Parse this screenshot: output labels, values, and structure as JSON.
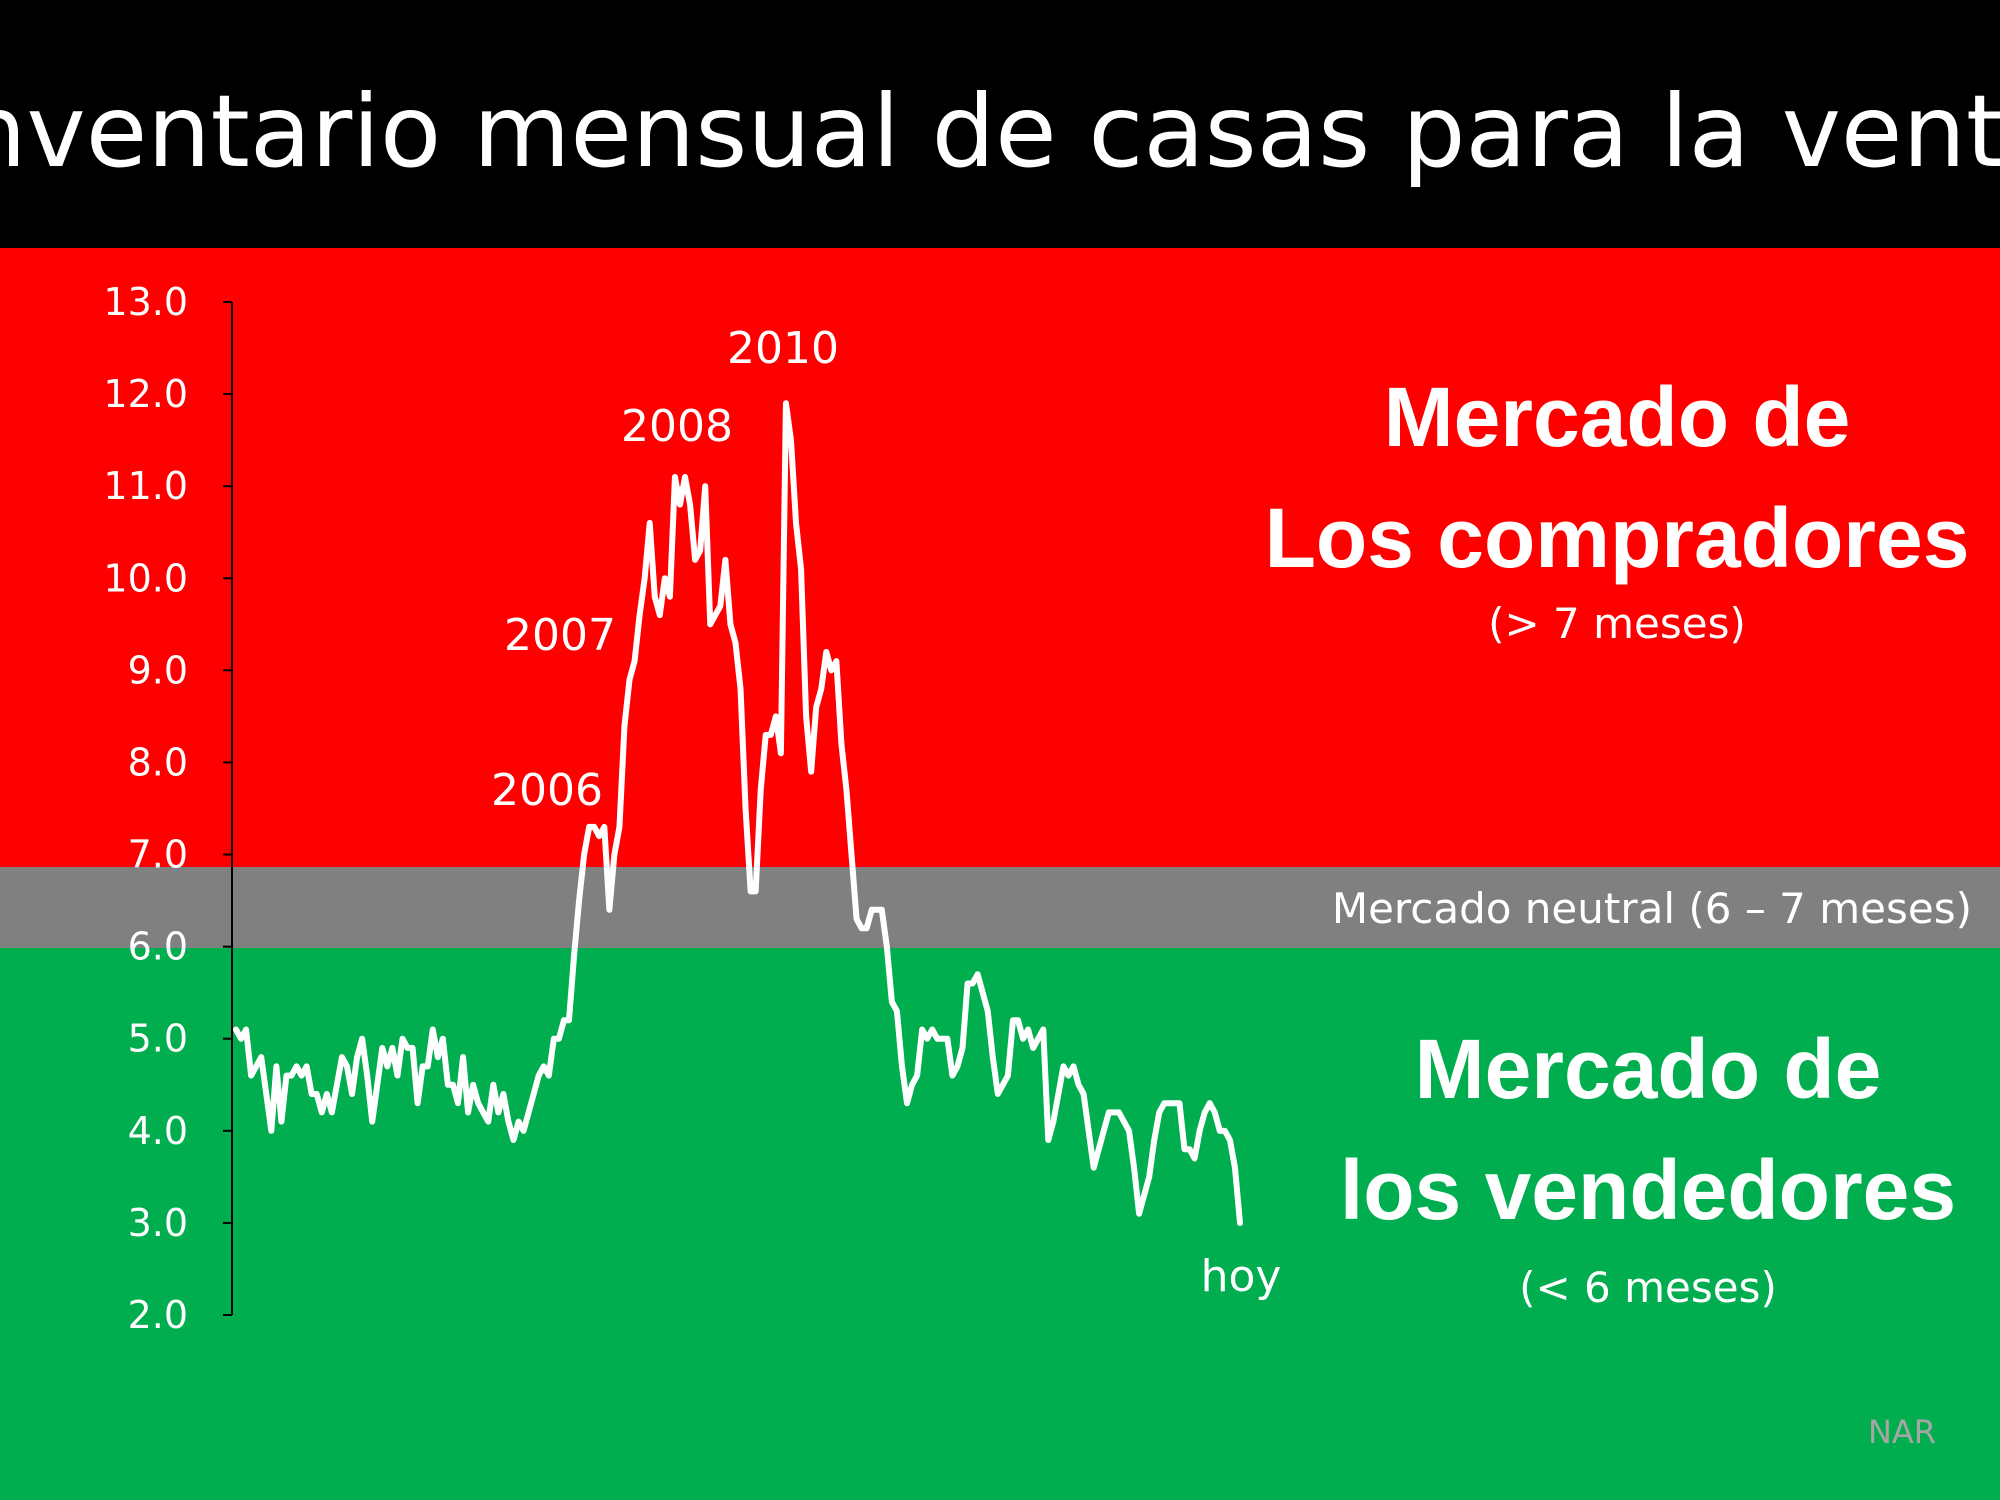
{
  "title": "Inventario mensual de casas para la venta",
  "colors": {
    "header": "#000000",
    "buyers": "#ff0000",
    "neutral": "#808080",
    "sellers": "#00ad4f",
    "line": "#ffffff",
    "source": "#a6a6a6"
  },
  "zones": {
    "buyers": {
      "line1": "Mercado de",
      "line2": "Los compradores",
      "note": "(> 7 meses)"
    },
    "neutral": {
      "label": "Mercado neutral (6 – 7 meses)"
    },
    "sellers": {
      "line1": "Mercado de",
      "line2": "los vendedores",
      "note": "(< 6 meses)"
    }
  },
  "source": "NAR",
  "chart_data": {
    "type": "line",
    "title": "Inventario mensual de casas para la venta",
    "ylim": [
      2.0,
      13.0
    ],
    "yticks": [
      "2.0",
      "3.0",
      "4.0",
      "5.0",
      "6.0",
      "7.0",
      "8.0",
      "9.0",
      "10.0",
      "11.0",
      "12.0",
      "13.0"
    ],
    "zone_thresholds": {
      "neutral_low": 6.0,
      "neutral_high": 7.0
    },
    "annotations": [
      {
        "text": "2006",
        "index": 70
      },
      {
        "text": "2007",
        "index": 79
      },
      {
        "text": "2008",
        "index": 87
      },
      {
        "text": "2010",
        "index": 108
      },
      {
        "text": "hoy",
        "index": 196
      }
    ],
    "values": [
      5.1,
      5.0,
      5.1,
      4.6,
      4.7,
      4.8,
      4.4,
      4.0,
      4.7,
      4.1,
      4.6,
      4.6,
      4.7,
      4.6,
      4.7,
      4.4,
      4.4,
      4.2,
      4.4,
      4.2,
      4.5,
      4.8,
      4.7,
      4.4,
      4.8,
      5.0,
      4.6,
      4.1,
      4.5,
      4.9,
      4.7,
      4.9,
      4.6,
      5.0,
      4.9,
      4.9,
      4.3,
      4.7,
      4.7,
      5.1,
      4.8,
      5.0,
      4.5,
      4.5,
      4.3,
      4.8,
      4.2,
      4.5,
      4.3,
      4.2,
      4.1,
      4.5,
      4.2,
      4.4,
      4.1,
      3.9,
      4.1,
      4.0,
      4.2,
      4.4,
      4.6,
      4.7,
      4.6,
      5.0,
      5.0,
      5.2,
      5.2,
      5.9,
      6.5,
      7.0,
      7.3,
      7.3,
      7.2,
      7.3,
      6.4,
      7.0,
      7.3,
      8.4,
      8.9,
      9.1,
      9.6,
      10.0,
      10.6,
      9.8,
      9.6,
      10.0,
      9.8,
      11.1,
      10.8,
      11.1,
      10.8,
      10.2,
      10.3,
      11.0,
      9.5,
      9.6,
      9.7,
      10.2,
      9.5,
      9.3,
      8.8,
      7.5,
      6.6,
      6.6,
      7.7,
      8.3,
      8.3,
      8.5,
      8.1,
      11.9,
      11.5,
      10.6,
      10.1,
      8.5,
      7.9,
      8.6,
      8.8,
      9.2,
      9.0,
      9.1,
      8.2,
      7.7,
      7.0,
      6.3,
      6.2,
      6.2,
      6.4,
      6.4,
      6.4,
      6.0,
      5.4,
      5.3,
      4.7,
      4.3,
      4.5,
      4.6,
      5.1,
      5.0,
      5.1,
      5.0,
      5.0,
      5.0,
      4.6,
      4.7,
      4.9,
      5.6,
      5.6,
      5.7,
      5.5,
      5.3,
      4.8,
      4.4,
      4.5,
      4.6,
      5.2,
      5.2,
      5.0,
      5.1,
      4.9,
      5.0,
      5.1,
      3.9,
      4.1,
      4.4,
      4.7,
      4.6,
      4.7,
      4.5,
      4.4,
      4.0,
      3.6,
      3.8,
      4.0,
      4.2,
      4.2,
      4.2,
      4.1,
      4.0,
      3.6,
      3.1,
      3.3,
      3.5,
      3.9,
      4.2,
      4.3,
      4.3,
      4.3,
      4.3,
      3.8,
      3.8,
      3.7,
      4.0,
      4.2,
      4.3,
      4.2,
      4.0,
      4.0,
      3.9,
      3.6,
      3.0
    ]
  }
}
